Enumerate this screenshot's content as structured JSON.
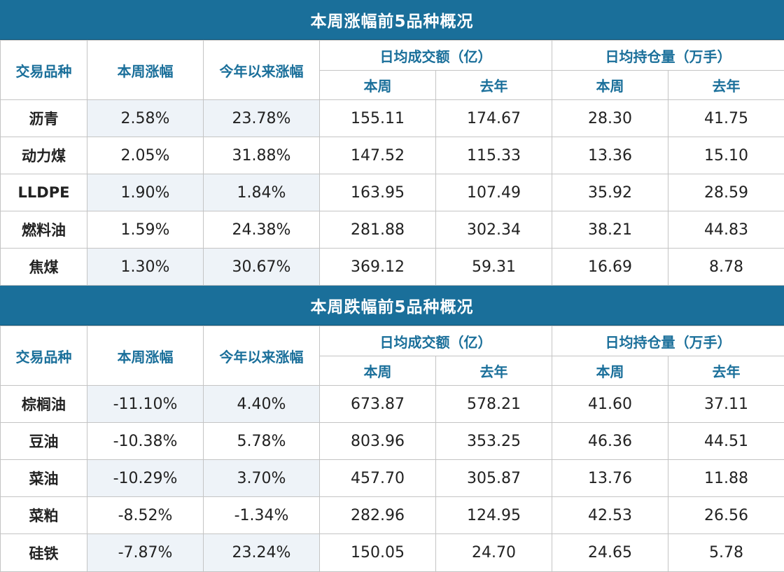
{
  "headers": {
    "name": "交易品种",
    "weekly_change": "本周涨幅",
    "ytd_change": "今年以来涨幅",
    "avg_volume": "日均成交额（亿）",
    "avg_open_interest": "日均持仓量（万手）",
    "this_week": "本周",
    "last_year": "去年"
  },
  "top_gainers": {
    "title": "本周涨幅前5品种概况",
    "rows": [
      {
        "name": "沥青",
        "weekly": "2.58%",
        "ytd": "23.78%",
        "vol_week": "155.11",
        "vol_year": "174.67",
        "oi_week": "28.30",
        "oi_year": "41.75"
      },
      {
        "name": "动力煤",
        "weekly": "2.05%",
        "ytd": "31.88%",
        "vol_week": "147.52",
        "vol_year": "115.33",
        "oi_week": "13.36",
        "oi_year": "15.10"
      },
      {
        "name": "LLDPE",
        "weekly": "1.90%",
        "ytd": "1.84%",
        "vol_week": "163.95",
        "vol_year": "107.49",
        "oi_week": "35.92",
        "oi_year": "28.59"
      },
      {
        "name": "燃料油",
        "weekly": "1.59%",
        "ytd": "24.38%",
        "vol_week": "281.88",
        "vol_year": "302.34",
        "oi_week": "38.21",
        "oi_year": "44.83"
      },
      {
        "name": "焦煤",
        "weekly": "1.30%",
        "ytd": "30.67%",
        "vol_week": "369.12",
        "vol_year": "59.31",
        "oi_week": "16.69",
        "oi_year": "8.78"
      }
    ]
  },
  "top_losers": {
    "title": "本周跌幅前5品种概况",
    "rows": [
      {
        "name": "棕榈油",
        "weekly": "-11.10%",
        "ytd": "4.40%",
        "vol_week": "673.87",
        "vol_year": "578.21",
        "oi_week": "41.60",
        "oi_year": "37.11"
      },
      {
        "name": "豆油",
        "weekly": "-10.38%",
        "ytd": "5.78%",
        "vol_week": "803.96",
        "vol_year": "353.25",
        "oi_week": "46.36",
        "oi_year": "44.51"
      },
      {
        "name": "菜油",
        "weekly": "-10.29%",
        "ytd": "3.70%",
        "vol_week": "457.70",
        "vol_year": "305.87",
        "oi_week": "13.76",
        "oi_year": "11.88"
      },
      {
        "name": "菜粕",
        "weekly": "-8.52%",
        "ytd": "-1.34%",
        "vol_week": "282.96",
        "vol_year": "124.95",
        "oi_week": "42.53",
        "oi_year": "26.56"
      },
      {
        "name": "硅铁",
        "weekly": "-7.87%",
        "ytd": "23.24%",
        "vol_week": "150.05",
        "vol_year": "24.70",
        "oi_week": "24.65",
        "oi_year": "5.78"
      }
    ]
  },
  "colors": {
    "header_bg": "#1a6f9a",
    "header_text": "#1a6f9a",
    "shaded_cell": "#eef3f8"
  }
}
